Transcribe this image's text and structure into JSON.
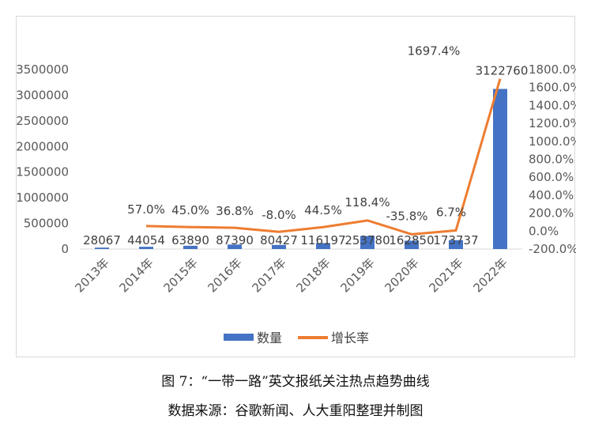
{
  "chart_data": {
    "type": "bar",
    "categories": [
      "2013年",
      "2014年",
      "2015年",
      "2016年",
      "2017年",
      "2018年",
      "2019年",
      "2020年",
      "2021年",
      "2022年"
    ],
    "series": [
      {
        "name": "数量",
        "type": "bar",
        "axis": "left",
        "color": "#4472c4",
        "values": [
          28067,
          44054,
          63890,
          87390,
          80427,
          116197,
          253780,
          162850,
          173737,
          3122760
        ],
        "labels": [
          "28067",
          "44054",
          "63890",
          "87390",
          "80427",
          "116197",
          "253780",
          "162850",
          "173737",
          "3122760"
        ]
      },
      {
        "name": "增长率",
        "type": "line",
        "axis": "right",
        "color": "#ed7d31",
        "values": [
          null,
          57.0,
          45.0,
          36.8,
          -8.0,
          44.5,
          118.4,
          -35.8,
          6.7,
          1697.4
        ],
        "labels": [
          "",
          "57.0%",
          "45.0%",
          "36.8%",
          "-8.0%",
          "44.5%",
          "118.4%",
          "-35.8%",
          "6.7%",
          "1697.4%"
        ]
      }
    ],
    "y_left": {
      "ylim": [
        0,
        3500000
      ],
      "ticks": [
        "0",
        "500000",
        "1000000",
        "1500000",
        "2000000",
        "2500000",
        "3000000",
        "3500000"
      ]
    },
    "y_right": {
      "ylim": [
        -200,
        1800
      ],
      "ticks": [
        "-200.0%",
        "0.0%",
        "200.0%",
        "400.0%",
        "600.0%",
        "800.0%",
        "1000.0%",
        "1200.0%",
        "1400.0%",
        "1600.0%",
        "1800.0%"
      ]
    },
    "legend_position": "bottom",
    "grid": false
  },
  "caption": {
    "title": "图 7：“一带一路”英文报纸关注热点趋势曲线",
    "source": "数据来源：谷歌新闻、人大重阳整理并制图"
  }
}
